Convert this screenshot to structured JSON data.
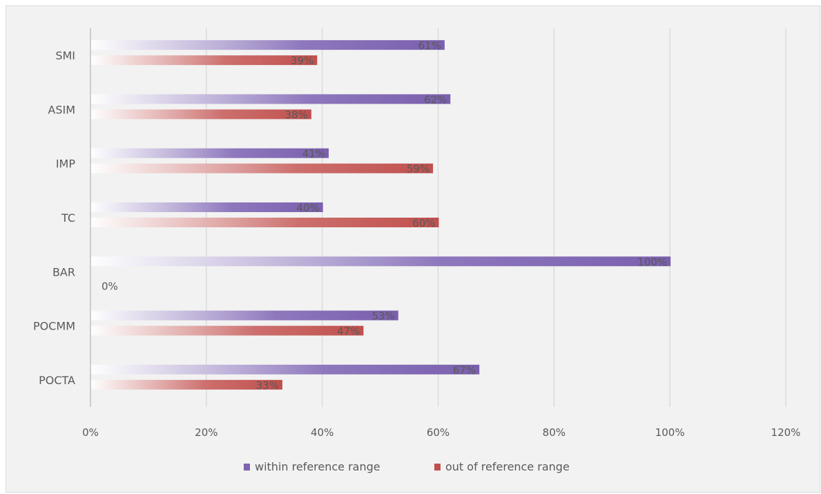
{
  "chart_data": {
    "type": "bar",
    "orientation": "horizontal",
    "categories": [
      "SMI",
      "ASIM",
      "IMP",
      "TC",
      "BAR",
      "POCMM",
      "POCTA"
    ],
    "series": [
      {
        "name": "within reference range",
        "values": [
          61,
          62,
          41,
          40,
          100,
          53,
          67
        ],
        "labels": [
          "61%",
          "62%",
          "41%",
          "40%",
          "100%",
          "53%",
          "67%"
        ],
        "color": "#7f63b0"
      },
      {
        "name": "out of reference range",
        "values": [
          39,
          38,
          59,
          60,
          0,
          47,
          33
        ],
        "labels": [
          "39%",
          "38%",
          "59%",
          "60%",
          "0%",
          "47%",
          "33%"
        ],
        "color": "#c0504d"
      }
    ],
    "xlim": [
      0,
      120
    ],
    "xticks": [
      0,
      20,
      40,
      60,
      80,
      100,
      120
    ],
    "xtick_labels": [
      "0%",
      "20%",
      "40%",
      "60%",
      "80%",
      "100%",
      "120%"
    ],
    "grid": true,
    "legend": "bottom",
    "title": "",
    "xlabel": "",
    "ylabel": ""
  }
}
